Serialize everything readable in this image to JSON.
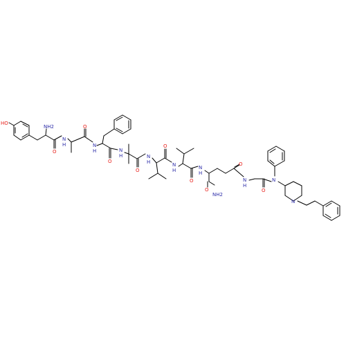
{
  "structure": {
    "atom_labels": [
      "HO",
      "NH2",
      "O",
      "N",
      "H",
      "O",
      "N",
      "H",
      "O",
      "N",
      "H",
      "O",
      "N",
      "H",
      "O",
      "N",
      "H",
      "O",
      "N",
      "H",
      "NH2",
      "O",
      "O",
      "N",
      "H",
      "O",
      "N",
      "N"
    ]
  },
  "colors": {
    "oxygen": "#e8201b",
    "nitrogen": "#2b2ba8",
    "carbon": "#000000"
  }
}
